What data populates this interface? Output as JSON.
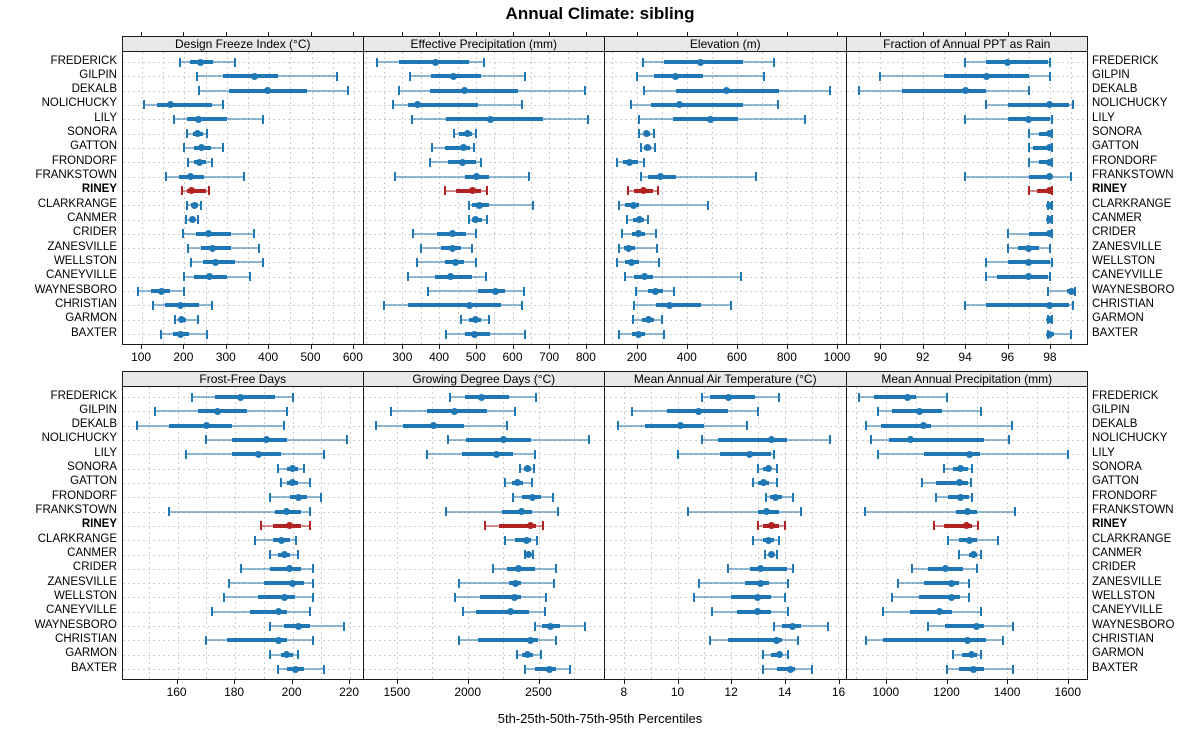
{
  "title": "Annual Climate: sibling",
  "footer": "5th-25th-50th-75th-95th Percentiles",
  "percentile_labels": [
    "5th",
    "25th",
    "50th",
    "75th",
    "95th"
  ],
  "highlight_station": "RINEY",
  "colors": {
    "series": "#1f77b4",
    "highlight": "#b22222",
    "grid": "#cccccc",
    "panel_header_bg": "#e8e8e8",
    "border": "#1a1a1a"
  },
  "stations": [
    "FREDERICK",
    "GILPIN",
    "DEKALB",
    "NOLICHUCKY",
    "LILY",
    "SONORA",
    "GATTON",
    "FRONDORF",
    "FRANKSTOWN",
    "RINEY",
    "CLARKRANGE",
    "CANMER",
    "CRIDER",
    "ZANESVILLE",
    "WELLSTON",
    "CANEYVILLE",
    "WAYNESBORO",
    "CHRISTIAN",
    "GARMON",
    "BAXTER"
  ],
  "chart_data": [
    {
      "type": "dotplot-percentiles",
      "title": "Design Freeze Index (°C)",
      "grid_row": 0,
      "grid_col": 0,
      "xlim": [
        55,
        625
      ],
      "ticks": [
        100,
        200,
        300,
        400,
        500,
        600
      ],
      "grid_step": 50,
      "values": [
        [
          190,
          212,
          237,
          268,
          320
        ],
        [
          230,
          290,
          365,
          420,
          560
        ],
        [
          235,
          305,
          395,
          490,
          585
        ],
        [
          105,
          135,
          167,
          265,
          290
        ],
        [
          175,
          205,
          233,
          300,
          385
        ],
        [
          205,
          220,
          230,
          243,
          253
        ],
        [
          200,
          223,
          239,
          262,
          292
        ],
        [
          208,
          223,
          235,
          251,
          264
        ],
        [
          157,
          188,
          215,
          247,
          340
        ],
        [
          194,
          205,
          217,
          250,
          258
        ],
        [
          207,
          215,
          224,
          232,
          238
        ],
        [
          204,
          212,
          219,
          226,
          231
        ],
        [
          196,
          227,
          256,
          310,
          365
        ],
        [
          208,
          240,
          266,
          310,
          375
        ],
        [
          215,
          243,
          273,
          320,
          385
        ],
        [
          200,
          223,
          260,
          300,
          355
        ],
        [
          90,
          120,
          145,
          165,
          198
        ],
        [
          125,
          153,
          190,
          235,
          265
        ],
        [
          178,
          186,
          193,
          204,
          233
        ],
        [
          145,
          172,
          190,
          211,
          253
        ]
      ]
    },
    {
      "type": "dotplot-percentiles",
      "title": "Effective Precipitation (mm)",
      "grid_row": 0,
      "grid_col": 1,
      "xlim": [
        194,
        852
      ],
      "ticks": [
        300,
        400,
        500,
        600,
        700,
        800
      ],
      "grid_step": 50,
      "values": [
        [
          232,
          291,
          389,
          482,
          523
        ],
        [
          320,
          377,
          440,
          515,
          635
        ],
        [
          290,
          374,
          468,
          614,
          798
        ],
        [
          273,
          314,
          341,
          505,
          627
        ],
        [
          325,
          418,
          541,
          682,
          805
        ],
        [
          440,
          455,
          477,
          490,
          500
        ],
        [
          380,
          415,
          465,
          485,
          495
        ],
        [
          375,
          423,
          464,
          500,
          514
        ],
        [
          280,
          470,
          503,
          535,
          645
        ],
        [
          415,
          445,
          490,
          515,
          530
        ],
        [
          480,
          490,
          510,
          535,
          655
        ],
        [
          480,
          490,
          500,
          518,
          530
        ],
        [
          330,
          395,
          436,
          473,
          500
        ],
        [
          350,
          405,
          435,
          460,
          490
        ],
        [
          340,
          415,
          444,
          468,
          500
        ],
        [
          315,
          390,
          432,
          490,
          527
        ],
        [
          370,
          505,
          553,
          580,
          630
        ],
        [
          250,
          315,
          482,
          568,
          625
        ],
        [
          460,
          480,
          498,
          515,
          535
        ],
        [
          420,
          470,
          495,
          540,
          635
        ]
      ]
    },
    {
      "type": "dotplot-percentiles",
      "title": "Elevation (m)",
      "grid_row": 0,
      "grid_col": 2,
      "xlim": [
        73,
        1038
      ],
      "ticks": [
        200,
        400,
        600,
        800,
        1000
      ],
      "grid_step": 100,
      "values": [
        [
          225,
          310,
          455,
          625,
          750
        ],
        [
          200,
          270,
          355,
          465,
          710
        ],
        [
          230,
          357,
          560,
          770,
          970
        ],
        [
          175,
          255,
          370,
          625,
          765
        ],
        [
          210,
          345,
          495,
          605,
          870
        ],
        [
          210,
          227,
          237,
          253,
          270
        ],
        [
          215,
          230,
          241,
          255,
          273
        ],
        [
          120,
          145,
          170,
          205,
          228
        ],
        [
          215,
          245,
          295,
          355,
          675
        ],
        [
          165,
          190,
          228,
          265,
          285
        ],
        [
          130,
          153,
          188,
          210,
          485
        ],
        [
          160,
          184,
          210,
          228,
          244
        ],
        [
          140,
          180,
          205,
          233,
          277
        ],
        [
          127,
          148,
          168,
          193,
          280
        ],
        [
          120,
          153,
          180,
          210,
          287
        ],
        [
          153,
          190,
          230,
          265,
          615
        ],
        [
          197,
          245,
          275,
          305,
          350
        ],
        [
          190,
          277,
          330,
          455,
          575
        ],
        [
          185,
          220,
          248,
          270,
          300
        ],
        [
          130,
          180,
          208,
          233,
          308
        ]
      ]
    },
    {
      "type": "dotplot-percentiles",
      "title": "Fraction of Annual PPT as Rain",
      "grid_row": 0,
      "grid_col": 3,
      "xlim": [
        88.4,
        99.8
      ],
      "ticks": [
        90,
        92,
        94,
        96,
        98
      ],
      "grid_step": 1,
      "values": [
        [
          94,
          95,
          96,
          97.9,
          98
        ],
        [
          90,
          93,
          95,
          97,
          98
        ],
        [
          89,
          91,
          94,
          95,
          97
        ],
        [
          95,
          96,
          98,
          98.9,
          99.1
        ],
        [
          94,
          96,
          97,
          98,
          98.1
        ],
        [
          97,
          97.5,
          98,
          98,
          98.1
        ],
        [
          97,
          97.2,
          98,
          98,
          98.1
        ],
        [
          97,
          97.5,
          98,
          98,
          98.1
        ],
        [
          94,
          97,
          98,
          98.1,
          99
        ],
        [
          97,
          97.4,
          98,
          98,
          98.1
        ],
        [
          97.9,
          98,
          98,
          98,
          98.1
        ],
        [
          97.9,
          98,
          98,
          98,
          98.1
        ],
        [
          96,
          97,
          98,
          98,
          98.1
        ],
        [
          96,
          96.5,
          97,
          97.5,
          98
        ],
        [
          95,
          96,
          97,
          98,
          98.1
        ],
        [
          95,
          95.5,
          97,
          97.9,
          98
        ],
        [
          97.9,
          98.8,
          99,
          99.1,
          99.2
        ],
        [
          94,
          95,
          98,
          98.9,
          99.1
        ],
        [
          97.9,
          98,
          98,
          98,
          98.1
        ],
        [
          97.9,
          98,
          98,
          98.2,
          99
        ]
      ]
    },
    {
      "type": "dotplot-percentiles",
      "title": "Frost-Free Days",
      "grid_row": 1,
      "grid_col": 0,
      "xlim": [
        141,
        225
      ],
      "ticks": [
        160,
        180,
        200,
        220
      ],
      "grid_step": 10,
      "values": [
        [
          165,
          173,
          182,
          194,
          200
        ],
        [
          152,
          167,
          174,
          184,
          198
        ],
        [
          146,
          157,
          170,
          179,
          197
        ],
        [
          170,
          179,
          191,
          198,
          219
        ],
        [
          163,
          179,
          188,
          196,
          211
        ],
        [
          195,
          198,
          200,
          202,
          204
        ],
        [
          196,
          198,
          200,
          202,
          206
        ],
        [
          192,
          199,
          202,
          205,
          210
        ],
        [
          157,
          194,
          198,
          203,
          206
        ],
        [
          189,
          193,
          199,
          203,
          206
        ],
        [
          187,
          193,
          196,
          199,
          201
        ],
        [
          192,
          195,
          197,
          199,
          202
        ],
        [
          182,
          192,
          199,
          203,
          207
        ],
        [
          178,
          190,
          200,
          204,
          207
        ],
        [
          176,
          188,
          197,
          201,
          207
        ],
        [
          172,
          185,
          195,
          198,
          206
        ],
        [
          192,
          197,
          202,
          206,
          218
        ],
        [
          170,
          177,
          195,
          198,
          207
        ],
        [
          192,
          196,
          198,
          200,
          202
        ],
        [
          195,
          198,
          201,
          204,
          211
        ]
      ]
    },
    {
      "type": "dotplot-percentiles",
      "title": "Growing Degree Days (°C)",
      "grid_row": 1,
      "grid_col": 1,
      "xlim": [
        1265,
        2969
      ],
      "ticks": [
        1500,
        2000,
        2500
      ],
      "grid_step": 250,
      "values": [
        [
          1875,
          1980,
          2100,
          2290,
          2480
        ],
        [
          1460,
          1715,
          1910,
          2140,
          2335
        ],
        [
          1355,
          1540,
          1760,
          1975,
          2275
        ],
        [
          1860,
          1985,
          2255,
          2445,
          2855
        ],
        [
          1710,
          1960,
          2200,
          2320,
          2475
        ],
        [
          2370,
          2395,
          2420,
          2445,
          2465
        ],
        [
          2265,
          2310,
          2350,
          2390,
          2455
        ],
        [
          2320,
          2385,
          2460,
          2515,
          2600
        ],
        [
          1845,
          2245,
          2380,
          2455,
          2640
        ],
        [
          2125,
          2220,
          2440,
          2480,
          2530
        ],
        [
          2265,
          2335,
          2415,
          2445,
          2490
        ],
        [
          2405,
          2420,
          2430,
          2440,
          2460
        ],
        [
          2175,
          2275,
          2360,
          2475,
          2620
        ],
        [
          1935,
          2290,
          2335,
          2375,
          2610
        ],
        [
          1910,
          2085,
          2330,
          2380,
          2555
        ],
        [
          1970,
          2060,
          2300,
          2430,
          2545
        ],
        [
          2475,
          2525,
          2585,
          2650,
          2830
        ],
        [
          1940,
          2075,
          2440,
          2500,
          2620
        ],
        [
          2345,
          2385,
          2420,
          2465,
          2515
        ],
        [
          2405,
          2475,
          2580,
          2620,
          2720
        ]
      ]
    },
    {
      "type": "dotplot-percentiles",
      "title": "Mean Annual Air Temperature (°C)",
      "grid_row": 1,
      "grid_col": 2,
      "xlim": [
        7.3,
        16.3
      ],
      "ticks": [
        8,
        10,
        12,
        14,
        16
      ],
      "grid_step": 1,
      "values": [
        [
          10.9,
          11.2,
          11.9,
          12.9,
          13.8
        ],
        [
          8.3,
          9.6,
          10.8,
          11.9,
          13.0
        ],
        [
          7.8,
          8.8,
          10.1,
          11.0,
          12.6
        ],
        [
          10.9,
          11.5,
          13.5,
          14.1,
          15.7
        ],
        [
          10.0,
          11.6,
          12.7,
          13.5,
          13.6
        ],
        [
          13.0,
          13.2,
          13.4,
          13.5,
          13.7
        ],
        [
          12.8,
          13.0,
          13.2,
          13.4,
          13.7
        ],
        [
          13.3,
          13.45,
          13.65,
          13.9,
          14.3
        ],
        [
          10.4,
          13.0,
          13.3,
          13.8,
          14.6
        ],
        [
          13.0,
          13.2,
          13.5,
          13.8,
          14.0
        ],
        [
          12.8,
          13.2,
          13.4,
          13.6,
          13.8
        ],
        [
          13.25,
          13.4,
          13.5,
          13.6,
          13.7
        ],
        [
          11.9,
          12.7,
          13.1,
          14.1,
          14.3
        ],
        [
          10.8,
          12.5,
          13.1,
          13.4,
          14.1
        ],
        [
          10.6,
          12.0,
          13.0,
          13.5,
          14.0
        ],
        [
          11.3,
          12.2,
          13.0,
          13.5,
          14.1
        ],
        [
          13.6,
          13.9,
          14.3,
          14.6,
          15.6
        ],
        [
          11.2,
          11.9,
          13.7,
          13.9,
          14.5
        ],
        [
          13.2,
          13.5,
          13.8,
          13.9,
          14.1
        ],
        [
          13.2,
          13.7,
          14.2,
          14.4,
          15.0
        ]
      ]
    },
    {
      "type": "dotplot-percentiles",
      "title": "Mean Annual Precipitation (mm)",
      "grid_row": 1,
      "grid_col": 3,
      "xlim": [
        870,
        1667
      ],
      "ticks": [
        1000,
        1200,
        1400,
        1600
      ],
      "grid_step": 100,
      "values": [
        [
          910,
          960,
          1070,
          1100,
          1200
        ],
        [
          975,
          1020,
          1110,
          1185,
          1315
        ],
        [
          935,
          985,
          1125,
          1150,
          1415
        ],
        [
          950,
          1010,
          1080,
          1325,
          1405
        ],
        [
          975,
          1125,
          1275,
          1310,
          1600
        ],
        [
          1190,
          1220,
          1247,
          1270,
          1285
        ],
        [
          1120,
          1165,
          1244,
          1270,
          1280
        ],
        [
          1165,
          1205,
          1245,
          1275,
          1285
        ],
        [
          930,
          1230,
          1270,
          1300,
          1425
        ],
        [
          1160,
          1190,
          1265,
          1285,
          1305
        ],
        [
          1205,
          1240,
          1277,
          1300,
          1370
        ],
        [
          1240,
          1275,
          1288,
          1300,
          1313
        ],
        [
          1085,
          1140,
          1196,
          1255,
          1300
        ],
        [
          1040,
          1125,
          1215,
          1240,
          1275
        ],
        [
          1020,
          1110,
          1218,
          1245,
          1275
        ],
        [
          990,
          1080,
          1178,
          1220,
          1315
        ],
        [
          1140,
          1195,
          1300,
          1325,
          1420
        ],
        [
          935,
          990,
          1270,
          1330,
          1385
        ],
        [
          1220,
          1250,
          1284,
          1300,
          1315
        ],
        [
          1200,
          1240,
          1288,
          1325,
          1420
        ]
      ]
    }
  ]
}
